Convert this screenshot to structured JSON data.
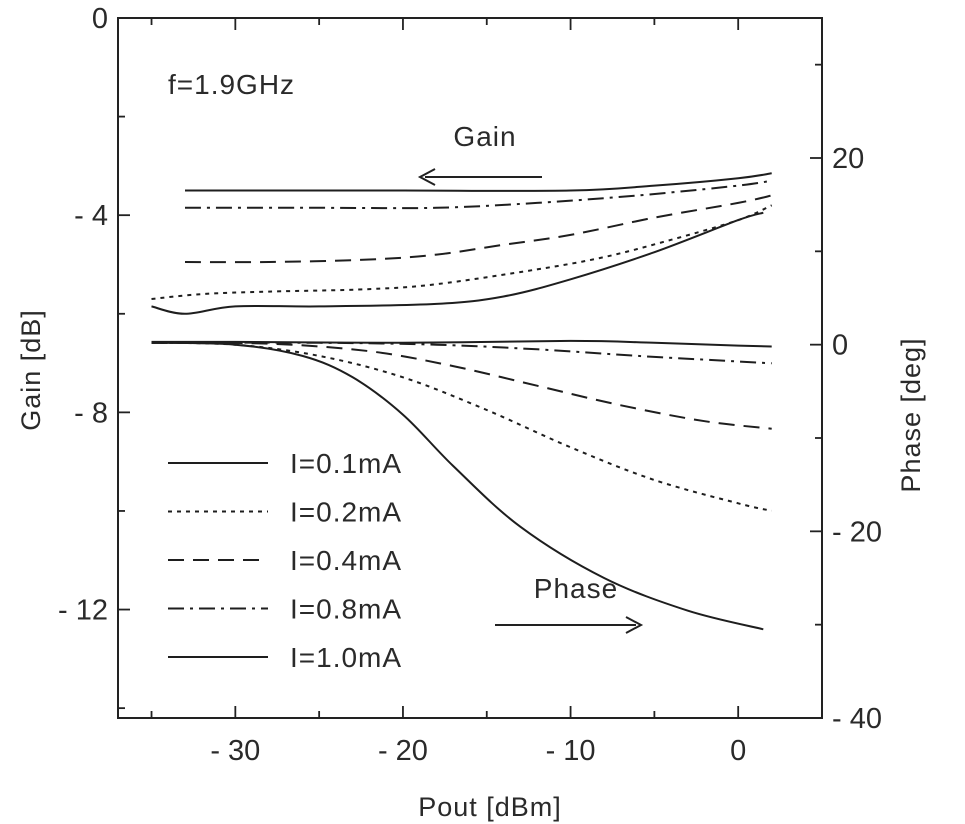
{
  "chart_data": {
    "type": "line",
    "annotation_freq": "f=1.9GHz",
    "xlabel": "Pout [dBm]",
    "ylabel_left": "Gain [dB]",
    "ylabel_right": "Phase [deg]",
    "xlim": [
      -37,
      5
    ],
    "ylim_left": [
      -14.2,
      0
    ],
    "ylim_right": [
      -40,
      35
    ],
    "x_ticks": [
      -30,
      -20,
      -10,
      0
    ],
    "x_tick_labels": [
      "- 30",
      "- 20",
      "- 10",
      "0"
    ],
    "y_left_ticks": [
      0,
      -4,
      -8,
      -12
    ],
    "y_left_tick_labels": [
      "0",
      "- 4",
      "- 8",
      "- 12"
    ],
    "y_right_ticks": [
      20,
      0,
      -20,
      -40
    ],
    "y_right_tick_labels": [
      "20",
      "0",
      "- 20",
      "- 40"
    ],
    "gain_label": "Gain",
    "phase_label": "Phase",
    "grid": false,
    "legend_position": "lower-left",
    "series": [
      {
        "name": "I=0.1mA",
        "dash": "solid-thin",
        "gain": [
          [
            -33,
            -3.5
          ],
          [
            -28,
            -3.5
          ],
          [
            -20,
            -3.5
          ],
          [
            -10,
            -3.5
          ],
          [
            -5,
            -3.4
          ],
          [
            0,
            -3.25
          ],
          [
            2,
            -3.15
          ]
        ],
        "phase": [
          [
            -35,
            0.3
          ],
          [
            -30,
            0.3
          ],
          [
            -20,
            0.2
          ],
          [
            -10,
            0.4
          ],
          [
            -5,
            0.2
          ],
          [
            0,
            -0.1
          ],
          [
            2,
            -0.2
          ]
        ]
      },
      {
        "name": "I=0.2mA",
        "dash": "dotted",
        "gain": [
          [
            -35,
            -5.7
          ],
          [
            -32,
            -5.6
          ],
          [
            -28,
            -5.55
          ],
          [
            -22,
            -5.5
          ],
          [
            -18,
            -5.4
          ],
          [
            -12,
            -5.1
          ],
          [
            -8,
            -4.85
          ],
          [
            -4,
            -4.5
          ],
          [
            0,
            -4.1
          ],
          [
            2,
            -3.8
          ]
        ],
        "phase": [
          [
            -35,
            0.2
          ],
          [
            -30,
            0
          ],
          [
            -25,
            -1.2
          ],
          [
            -20,
            -3.5
          ],
          [
            -15,
            -7
          ],
          [
            -10,
            -11
          ],
          [
            -5,
            -14.5
          ],
          [
            0,
            -17
          ],
          [
            2,
            -17.8
          ]
        ]
      },
      {
        "name": "I=0.4mA",
        "dash": "dashed",
        "gain": [
          [
            -33,
            -4.95
          ],
          [
            -28,
            -4.95
          ],
          [
            -22,
            -4.9
          ],
          [
            -18,
            -4.8
          ],
          [
            -14,
            -4.6
          ],
          [
            -10,
            -4.4
          ],
          [
            -5,
            -4.05
          ],
          [
            0,
            -3.75
          ],
          [
            2,
            -3.6
          ]
        ],
        "phase": [
          [
            -35,
            0.2
          ],
          [
            -28,
            0.1
          ],
          [
            -22,
            -0.7
          ],
          [
            -17,
            -2.3
          ],
          [
            -12,
            -4.4
          ],
          [
            -7,
            -6.5
          ],
          [
            -2,
            -8.2
          ],
          [
            2,
            -9
          ]
        ]
      },
      {
        "name": "I=0.8mA",
        "dash": "dashdot",
        "gain": [
          [
            -33,
            -3.85
          ],
          [
            -25,
            -3.85
          ],
          [
            -18,
            -3.85
          ],
          [
            -12,
            -3.75
          ],
          [
            -6,
            -3.6
          ],
          [
            0,
            -3.4
          ],
          [
            2,
            -3.3
          ]
        ],
        "phase": [
          [
            -35,
            0.2
          ],
          [
            -25,
            0.2
          ],
          [
            -18,
            0
          ],
          [
            -12,
            -0.5
          ],
          [
            -6,
            -1.2
          ],
          [
            0,
            -1.8
          ],
          [
            2,
            -2
          ]
        ]
      },
      {
        "name": "I=1.0mA",
        "dash": "solid",
        "gain": [
          [
            -35,
            -5.85
          ],
          [
            -33,
            -6
          ],
          [
            -30,
            -5.85
          ],
          [
            -25,
            -5.85
          ],
          [
            -18,
            -5.8
          ],
          [
            -14,
            -5.65
          ],
          [
            -10,
            -5.3
          ],
          [
            -5,
            -4.75
          ],
          [
            0,
            -4.1
          ],
          [
            1.5,
            -3.95
          ]
        ],
        "phase": [
          [
            -35,
            0.2
          ],
          [
            -30,
            0
          ],
          [
            -26,
            -1.2
          ],
          [
            -23,
            -3.5
          ],
          [
            -20,
            -7.5
          ],
          [
            -17,
            -13
          ],
          [
            -13,
            -19.5
          ],
          [
            -8,
            -25
          ],
          [
            -3,
            -28.5
          ],
          [
            1.5,
            -30.5
          ]
        ]
      }
    ]
  }
}
